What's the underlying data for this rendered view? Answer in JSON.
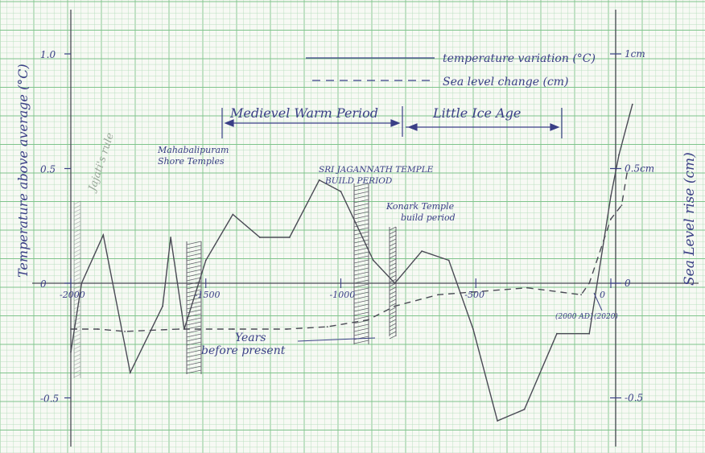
{
  "chart_data": {
    "type": "line",
    "x_axis": {
      "label_line1": "Years",
      "label_line2": "before present",
      "ticks": [
        "-2000",
        "-1500",
        "-1000",
        "-500",
        "0"
      ],
      "range": [
        -2000,
        300
      ]
    },
    "y_axis_left": {
      "label": "Temperature above average (°C)",
      "ticks": [
        "1.0",
        "0.5",
        "0",
        "-0.5"
      ],
      "range": [
        -0.7,
        1.15
      ]
    },
    "y_axis_right": {
      "label": "Sea Level rise (cm)",
      "ticks": [
        "1cm",
        "0.5cm",
        "0",
        "-0.5"
      ]
    },
    "legend": {
      "position": "top-right",
      "temperature": "temperature variation (°C)",
      "sea_level": "Sea level change (cm)"
    },
    "series": [
      {
        "name": "temperature variation (°C)",
        "style": "solid",
        "x": [
          -2000,
          -1960,
          -1880,
          -1780,
          -1660,
          -1630,
          -1580,
          -1500,
          -1400,
          -1300,
          -1190,
          -1080,
          -1000,
          -880,
          -800,
          -700,
          -600,
          -510,
          -420,
          -320,
          -200,
          -80,
          0,
          30,
          80
        ],
        "y": [
          -0.3,
          0.0,
          0.21,
          -0.39,
          -0.1,
          0.2,
          -0.2,
          0.1,
          0.3,
          0.2,
          0.2,
          0.45,
          0.4,
          0.1,
          0.0,
          0.14,
          0.1,
          -0.2,
          -0.6,
          -0.55,
          -0.22,
          -0.22,
          0.38,
          0.56,
          0.78
        ]
      },
      {
        "name": "Sea level change (cm)",
        "style": "dashed",
        "x": [
          -2000,
          -1900,
          -1800,
          -1600,
          -1400,
          -1200,
          -1050,
          -900,
          -800,
          -640,
          -310,
          -110,
          -80,
          0,
          40,
          60
        ],
        "y": [
          -0.2,
          -0.2,
          -0.21,
          -0.2,
          -0.2,
          -0.2,
          -0.19,
          -0.16,
          -0.1,
          -0.05,
          -0.02,
          -0.05,
          0.0,
          0.28,
          0.34,
          0.48
        ]
      }
    ],
    "annotations": {
      "medieval": "Medievel Warm Period",
      "little_ice_age": "Little Ice Age",
      "jajati": "Jajati's rule",
      "mahabalipuram_1": "Mahabalipuram",
      "mahabalipuram_2": "Shore Temples",
      "jagannath_1": "SRI JAGANNATH TEMPLE",
      "jagannath_2": "BUILD PERIOD",
      "konark_1": "Konark Temple",
      "konark_2": "build period",
      "ad2000": "(2000 AD)",
      "ad2020": "(2020)"
    },
    "grid": true
  },
  "colors": {
    "paper": "#f7f9f4",
    "grid_minor": "#b9dfbf",
    "grid_major": "#7fc48c",
    "ink": "#3a3f86",
    "pencil": "#4a4a55"
  }
}
